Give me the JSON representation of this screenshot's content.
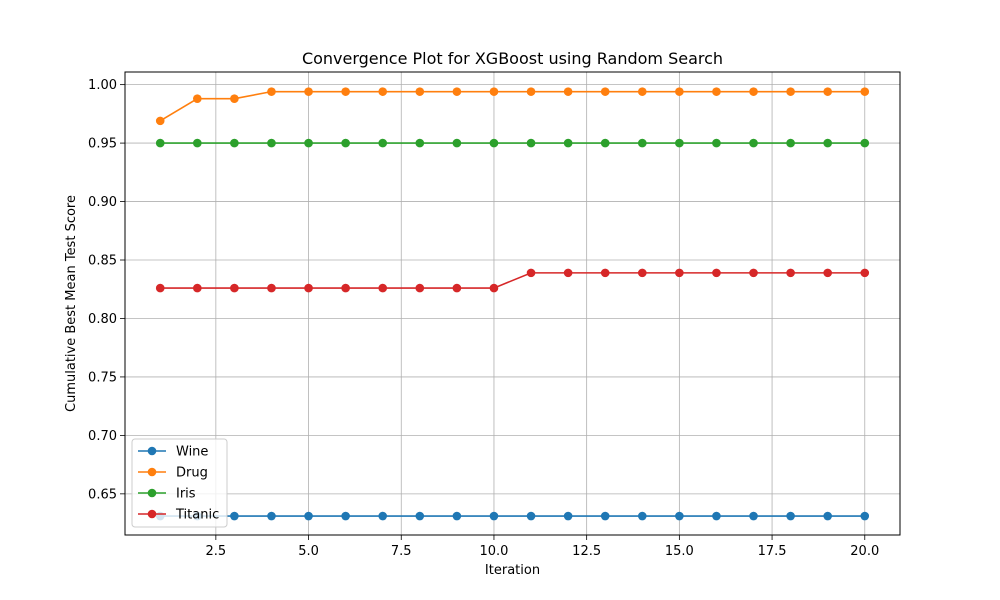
{
  "chart_data": {
    "type": "line",
    "title": "Convergence Plot for XGBoost using Random Search",
    "xlabel": "Iteration",
    "ylabel": "Cumulative Best Mean Test Score",
    "xlim": [
      0.05,
      20.95
    ],
    "ylim": [
      0.6148,
      1.0108
    ],
    "xticks": [
      2.5,
      5.0,
      7.5,
      10.0,
      12.5,
      15.0,
      17.5,
      20.0
    ],
    "xtick_labels": [
      "2.5",
      "5.0",
      "7.5",
      "10.0",
      "12.5",
      "15.0",
      "17.5",
      "20.0"
    ],
    "yticks": [
      0.65,
      0.7,
      0.75,
      0.8,
      0.85,
      0.9,
      0.95,
      1.0
    ],
    "ytick_labels": [
      "0.65",
      "0.70",
      "0.75",
      "0.80",
      "0.85",
      "0.90",
      "0.95",
      "1.00"
    ],
    "grid": true,
    "legend_position": "lower-left",
    "x": [
      1,
      2,
      3,
      4,
      5,
      6,
      7,
      8,
      9,
      10,
      11,
      12,
      13,
      14,
      15,
      16,
      17,
      18,
      19,
      20
    ],
    "series": [
      {
        "name": "Wine",
        "color": "#1f77b4",
        "values": [
          0.631,
          0.631,
          0.631,
          0.631,
          0.631,
          0.631,
          0.631,
          0.631,
          0.631,
          0.631,
          0.631,
          0.631,
          0.631,
          0.631,
          0.631,
          0.631,
          0.631,
          0.631,
          0.631,
          0.631
        ]
      },
      {
        "name": "Drug",
        "color": "#ff7f0e",
        "values": [
          0.969,
          0.988,
          0.988,
          0.994,
          0.994,
          0.994,
          0.994,
          0.994,
          0.994,
          0.994,
          0.994,
          0.994,
          0.994,
          0.994,
          0.994,
          0.994,
          0.994,
          0.994,
          0.994,
          0.994
        ]
      },
      {
        "name": "Iris",
        "color": "#2ca02c",
        "values": [
          0.95,
          0.95,
          0.95,
          0.95,
          0.95,
          0.95,
          0.95,
          0.95,
          0.95,
          0.95,
          0.95,
          0.95,
          0.95,
          0.95,
          0.95,
          0.95,
          0.95,
          0.95,
          0.95,
          0.95
        ]
      },
      {
        "name": "Titanic",
        "color": "#d62728",
        "values": [
          0.826,
          0.826,
          0.826,
          0.826,
          0.826,
          0.826,
          0.826,
          0.826,
          0.826,
          0.826,
          0.839,
          0.839,
          0.839,
          0.839,
          0.839,
          0.839,
          0.839,
          0.839,
          0.839,
          0.839
        ]
      }
    ]
  }
}
